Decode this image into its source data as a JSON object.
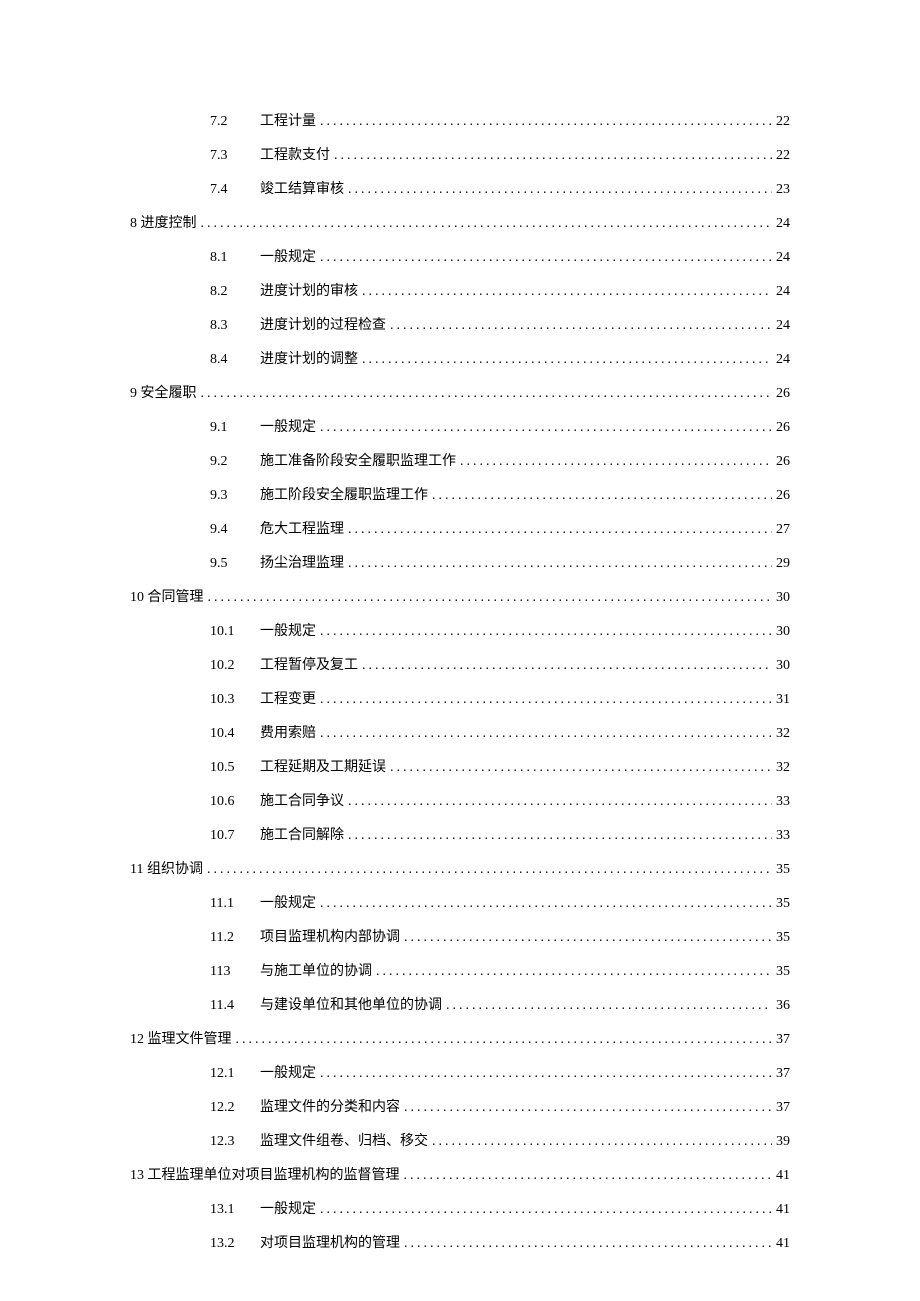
{
  "entries": [
    {
      "level": 2,
      "num": "7.2",
      "title": "工程计量",
      "page": "22"
    },
    {
      "level": 2,
      "num": "7.3",
      "title": "工程款支付",
      "page": "22"
    },
    {
      "level": 2,
      "num": "7.4",
      "title": "竣工结算审核",
      "page": "23"
    },
    {
      "level": 1,
      "num": "8",
      "title": "进度控制",
      "page": "24"
    },
    {
      "level": 2,
      "num": "8.1",
      "title": "一般规定",
      "page": "24"
    },
    {
      "level": 2,
      "num": "8.2",
      "title": "进度计划的审核",
      "page": "24"
    },
    {
      "level": 2,
      "num": "8.3",
      "title": "进度计划的过程检查",
      "page": "24"
    },
    {
      "level": 2,
      "num": "8.4",
      "title": "进度计划的调整",
      "page": "24"
    },
    {
      "level": 1,
      "num": "9",
      "title": "安全履职",
      "page": "26"
    },
    {
      "level": 2,
      "num": "9.1",
      "title": "一般规定",
      "page": "26"
    },
    {
      "level": 2,
      "num": "9.2",
      "title": "施工准备阶段安全履职监理工作",
      "page": "26"
    },
    {
      "level": 2,
      "num": "9.3",
      "title": "施工阶段安全履职监理工作",
      "page": "26"
    },
    {
      "level": 2,
      "num": "9.4",
      "title": "危大工程监理",
      "page": "27"
    },
    {
      "level": 2,
      "num": "9.5",
      "title": "扬尘治理监理",
      "page": "29"
    },
    {
      "level": 1,
      "num": "10",
      "title": "合同管理",
      "page": "30"
    },
    {
      "level": 2,
      "num": "10.1",
      "title": "一般规定",
      "page": "30"
    },
    {
      "level": 2,
      "num": "10.2",
      "title": "工程暂停及复工",
      "page": "30"
    },
    {
      "level": 2,
      "num": "10.3",
      "title": "工程变更",
      "page": "31"
    },
    {
      "level": 2,
      "num": "10.4",
      "title": "费用索赔",
      "page": "32"
    },
    {
      "level": 2,
      "num": "10.5",
      "title": "工程延期及工期延误",
      "page": "32"
    },
    {
      "level": 2,
      "num": "10.6",
      "title": "施工合同争议",
      "page": "33"
    },
    {
      "level": 2,
      "num": "10.7",
      "title": "施工合同解除",
      "page": "33"
    },
    {
      "level": 1,
      "num": "11",
      "title": "组织协调",
      "page": "35"
    },
    {
      "level": 2,
      "num": "11.1",
      "title": "一般规定",
      "page": "35"
    },
    {
      "level": 2,
      "num": "11.2",
      "title": "项目监理机构内部协调",
      "page": "35"
    },
    {
      "level": 2,
      "num": "113",
      "title": "与施工单位的协调",
      "page": "35"
    },
    {
      "level": 2,
      "num": "11.4",
      "title": "与建设单位和其他单位的协调",
      "page": "36"
    },
    {
      "level": 1,
      "num": "12",
      "title": "监理文件管理",
      "page": "37"
    },
    {
      "level": 2,
      "num": "12.1",
      "title": "一般规定",
      "page": "37"
    },
    {
      "level": 2,
      "num": "12.2",
      "title": "监理文件的分类和内容",
      "page": "37"
    },
    {
      "level": 2,
      "num": "12.3",
      "title": "监理文件组卷、归档、移交",
      "page": "39"
    },
    {
      "level": 1,
      "num": "13",
      "title": "工程监理单位对项目监理机构的监督管理",
      "page": "41"
    },
    {
      "level": 2,
      "num": "13.1",
      "title": "一般规定",
      "page": "41"
    },
    {
      "level": 2,
      "num": "13.2",
      "title": "对项目监理机构的管理",
      "page": "41"
    }
  ],
  "fill_char": ".",
  "colors": {
    "text": "#000000",
    "background": "#ffffff"
  },
  "fontsize": 14
}
